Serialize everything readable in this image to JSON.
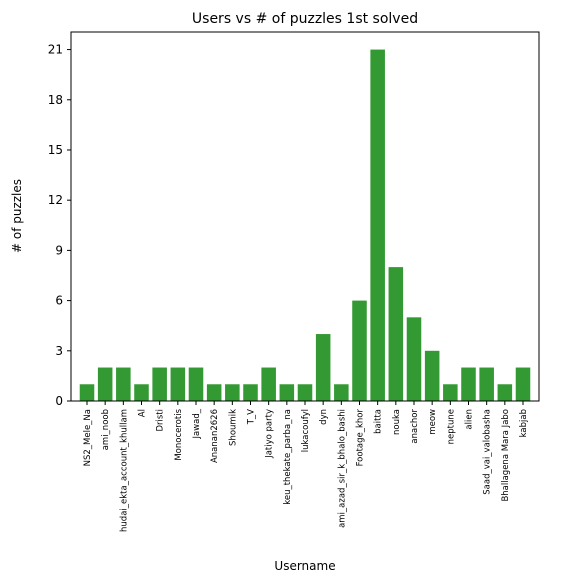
{
  "chart_data": {
    "type": "bar",
    "title": "Users vs # of puzzles 1st solved",
    "xlabel": "Username",
    "ylabel": "# of puzzles",
    "categories": [
      "NS2_Mele_Na",
      "ami_noob",
      "hudai_ekta_account_khullam",
      "Al",
      "Dristi",
      "Monocerotis",
      "Jawad_",
      "Ananan2626",
      "Shoumik",
      "T_V",
      "Jatiyo party",
      "keu_thekate_parba_na",
      "lukacoufyl",
      "dyn",
      "ami_azad_sir_k_bhalo_bashi",
      "Footage_khor",
      "baitta",
      "nouka",
      "anachor",
      "meow",
      "neptune",
      "alien",
      "Saad_vai_valobasha",
      "Bhallagena Mara Jabo",
      "kabjab"
    ],
    "values": [
      1,
      2,
      2,
      1,
      2,
      2,
      2,
      1,
      1,
      1,
      2,
      1,
      1,
      4,
      1,
      6,
      21,
      8,
      5,
      3,
      1,
      2,
      2,
      1,
      2
    ],
    "yticks": [
      0,
      3,
      6,
      9,
      12,
      15,
      18,
      21
    ],
    "ylim": [
      0,
      22.05
    ],
    "bar_color": "#339933",
    "grid": false,
    "legend": "none"
  }
}
